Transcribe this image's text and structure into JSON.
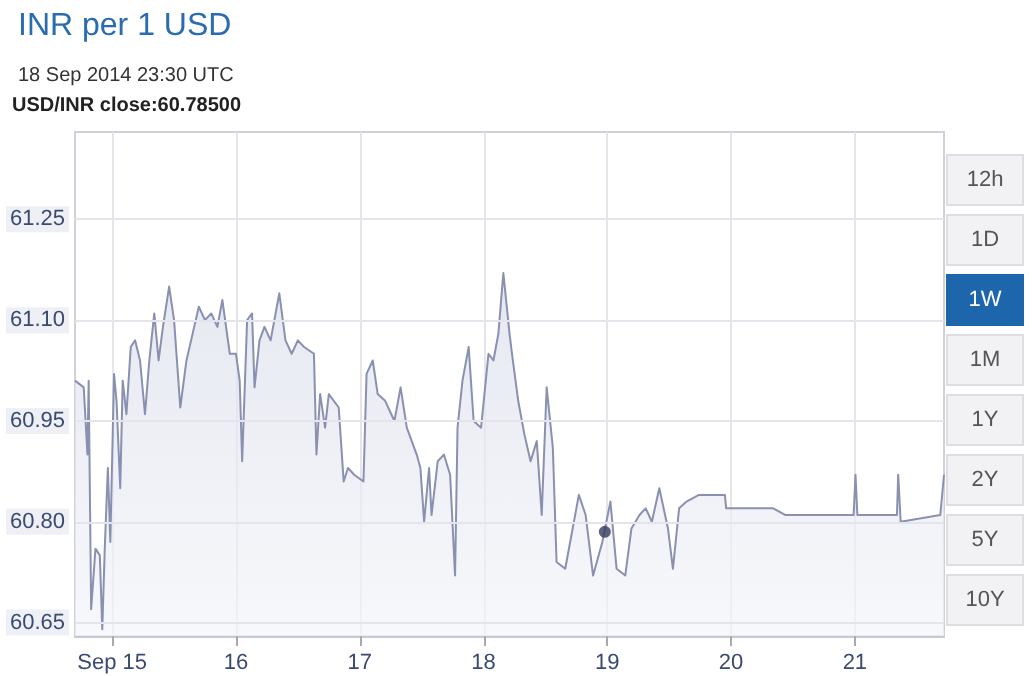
{
  "chart_data": {
    "type": "area",
    "title": "INR per 1 USD",
    "subtitle": "18 Sep 2014 23:30 UTC",
    "annotations": [
      "USD/INR close:60.78500",
      "12h",
      "1D",
      "1W",
      "1M",
      "1Y",
      "2Y",
      "5Y",
      "10Y"
    ],
    "series": [
      {
        "color": "#8a90b0",
        "x": [
          14.7,
          14.77,
          14.8,
          14.81,
          14.83,
          14.865,
          14.9,
          14.92,
          14.94,
          14.965,
          14.985,
          15.015,
          15.035,
          15.065,
          15.085,
          15.115,
          15.15,
          15.185,
          15.225,
          15.265,
          15.3,
          15.34,
          15.375,
          15.41,
          15.46,
          15.5,
          15.55,
          15.6,
          15.65,
          15.7,
          15.75,
          15.8,
          15.85,
          15.89,
          15.95,
          16.0,
          16.03,
          16.05,
          16.09,
          16.13,
          16.15,
          16.19,
          16.23,
          16.28,
          16.35,
          16.4,
          16.45,
          16.5,
          16.55,
          16.63,
          16.65,
          16.68,
          16.72,
          16.75,
          16.83,
          16.87,
          16.905,
          16.955,
          17.03,
          17.055,
          17.105,
          17.145,
          17.205,
          17.28,
          17.33,
          17.38,
          17.46,
          17.49,
          17.52,
          17.56,
          17.58,
          17.63,
          17.68,
          17.73,
          17.77,
          17.79,
          17.83,
          17.88,
          17.92,
          17.98,
          18.04,
          18.08,
          18.12,
          18.16,
          18.21,
          18.23,
          18.28,
          18.33,
          18.38,
          18.43,
          18.47,
          18.51,
          18.56,
          18.59,
          18.66,
          18.71,
          18.77,
          18.825,
          18.885,
          18.96,
          19.025,
          19.075,
          19.145,
          19.195,
          19.26,
          19.31,
          19.36,
          19.42,
          19.49,
          19.53,
          19.58,
          19.64,
          19.74,
          19.84,
          19.95,
          19.96,
          20.34,
          20.44,
          20.99,
          21.005,
          21.02,
          21.34,
          21.35,
          21.37,
          21.69,
          21.72
        ],
        "values": [
          61.01,
          61.0,
          60.9,
          61.01,
          60.67,
          60.76,
          60.75,
          60.64,
          60.76,
          60.88,
          60.77,
          61.02,
          60.98,
          60.85,
          61.01,
          60.96,
          61.06,
          61.07,
          61.04,
          60.96,
          61.04,
          61.11,
          61.04,
          61.09,
          61.15,
          61.1,
          60.97,
          61.04,
          61.08,
          61.12,
          61.1,
          61.11,
          61.09,
          61.13,
          61.05,
          61.05,
          61.01,
          60.89,
          61.1,
          61.11,
          61.0,
          61.07,
          61.09,
          61.07,
          61.14,
          61.07,
          61.05,
          61.07,
          61.06,
          61.05,
          60.9,
          60.99,
          60.94,
          60.99,
          60.97,
          60.86,
          60.88,
          60.87,
          60.86,
          61.02,
          61.04,
          60.99,
          60.98,
          60.95,
          61.0,
          60.94,
          60.9,
          60.88,
          60.8,
          60.88,
          60.81,
          60.89,
          60.9,
          60.87,
          60.72,
          60.94,
          61.01,
          61.06,
          60.95,
          60.94,
          61.05,
          61.04,
          61.08,
          61.17,
          61.08,
          61.05,
          60.98,
          60.93,
          60.89,
          60.92,
          60.81,
          61.0,
          60.91,
          60.74,
          60.73,
          60.78,
          60.84,
          60.81,
          60.72,
          60.77,
          60.83,
          60.73,
          60.72,
          60.79,
          60.81,
          60.82,
          60.8,
          60.85,
          60.79,
          60.73,
          60.82,
          60.83,
          60.84,
          60.84,
          60.84,
          60.82,
          60.82,
          60.81,
          60.81,
          60.87,
          60.81,
          60.81,
          60.87,
          60.8,
          60.81,
          60.87
        ]
      },
      {
        "type": "scatter",
        "color": "#343b5c",
        "x": [
          18.98
        ],
        "values": [
          60.785
        ]
      }
    ],
    "xlim": [
      14.7,
      21.72
    ],
    "xticks": [
      {
        "value": 15,
        "label": "Sep 15"
      },
      {
        "value": 16,
        "label": "16"
      },
      {
        "value": 17,
        "label": "17"
      },
      {
        "value": 18,
        "label": "18"
      },
      {
        "value": 19,
        "label": "19"
      },
      {
        "value": 20,
        "label": "20"
      },
      {
        "value": 21,
        "label": "21"
      }
    ],
    "ylim": [
      60.63,
      61.38
    ],
    "yticks": [
      {
        "value": 60.65,
        "label": "60.65"
      },
      {
        "value": 60.8,
        "label": "60.80"
      },
      {
        "value": 60.95,
        "label": "60.95"
      },
      {
        "value": 61.1,
        "label": "61.10"
      },
      {
        "value": 61.25,
        "label": "61.25"
      }
    ],
    "grid": true
  }
}
